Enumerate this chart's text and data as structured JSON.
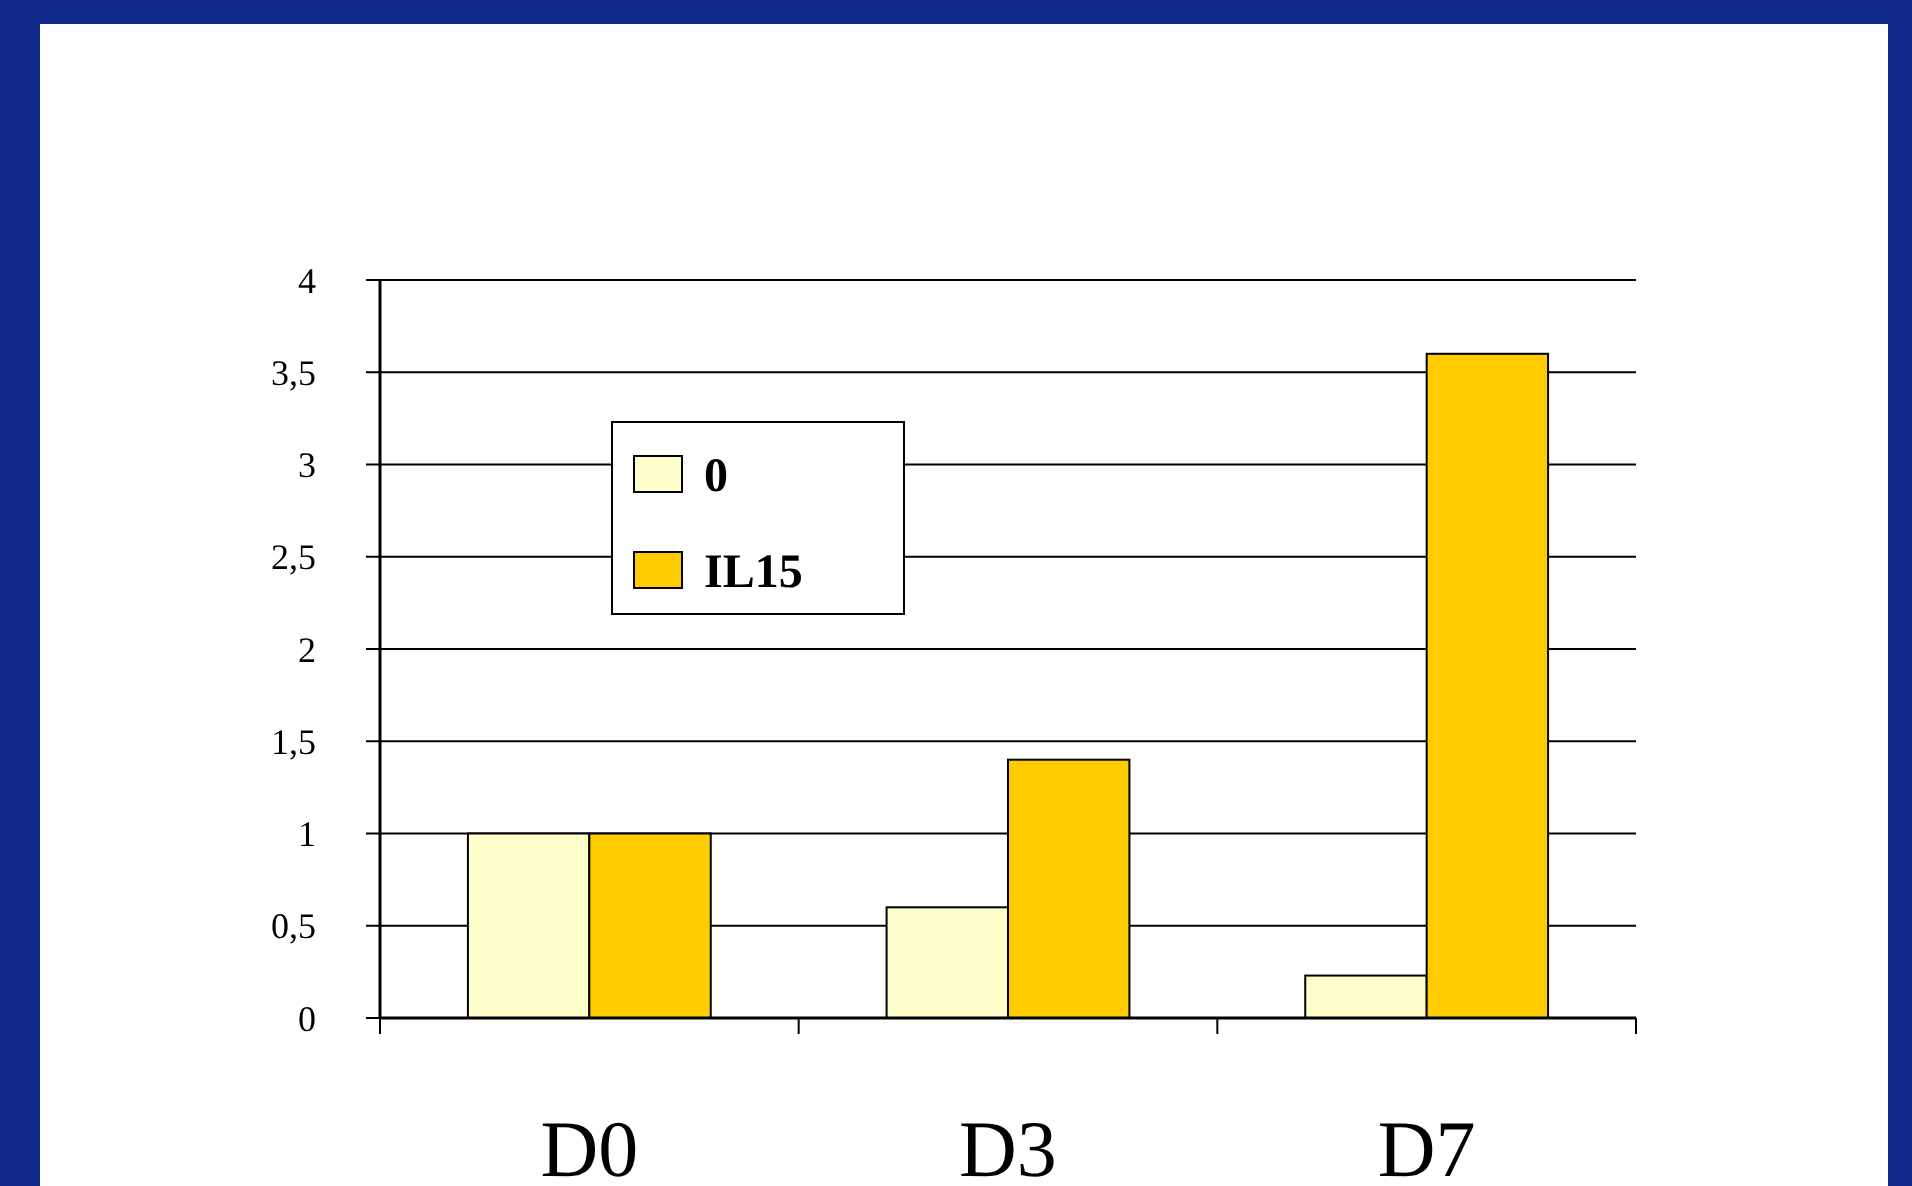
{
  "chart_data": {
    "type": "bar",
    "categories": [
      "D0",
      "D3",
      "D7"
    ],
    "series": [
      {
        "name": "0",
        "color": "#ffffcc",
        "values": [
          1,
          0.6,
          0.23
        ]
      },
      {
        "name": "IL15",
        "color": "#ffcc00",
        "values": [
          1,
          1.4,
          3.6
        ]
      }
    ],
    "ylim": [
      0,
      4
    ],
    "yticks": [
      0,
      {
        "value": 0.5,
        "label": "0,5"
      },
      1,
      {
        "value": 1.5,
        "label": "1,5"
      },
      2,
      {
        "value": 2.5,
        "label": "2,5"
      },
      3,
      {
        "value": 3.5,
        "label": "3,5"
      },
      4
    ],
    "grid": "y",
    "legend": "top left"
  }
}
